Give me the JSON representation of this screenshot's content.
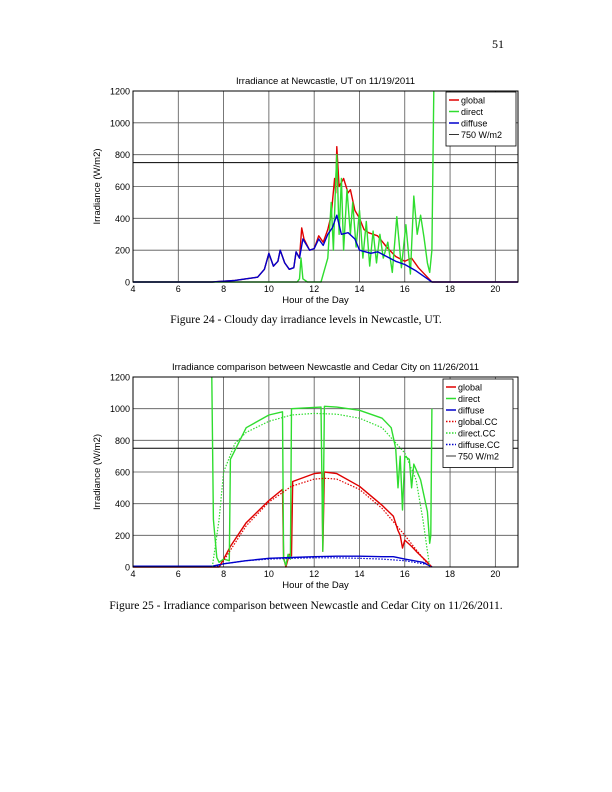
{
  "page_number": "51",
  "captions": [
    "Figure 24 - Cloudy day irradiance levels in Newcastle, UT.",
    "Figure 25 - Irradiance comparison between Newcastle and Cedar City on 11/26/2011."
  ],
  "colors": {
    "global": "#e00000",
    "direct": "#2fdd2f",
    "diffuse": "#0000cc",
    "reference": "#000000"
  },
  "chart_data": [
    {
      "type": "line",
      "title": "Irradiance at Newcastle, UT on 11/19/2011",
      "xlabel": "Hour of the Day",
      "ylabel": "Irradiance (W/m2)",
      "xlim": [
        4,
        21
      ],
      "ylim": [
        0,
        1200
      ],
      "xticks": [
        "4",
        "6",
        "8",
        "10",
        "12",
        "14",
        "16",
        "18",
        "20"
      ],
      "yticks": [
        "0",
        "200",
        "400",
        "600",
        "800",
        "1000",
        "1200"
      ],
      "grid": true,
      "legend_position": "top-right",
      "reference_line": {
        "name": "750 W/m2",
        "y": 750
      },
      "series": [
        {
          "name": "global",
          "color_key": "global",
          "style": "solid",
          "points": [
            [
              4,
              0
            ],
            [
              7.5,
              0
            ],
            [
              8,
              5
            ],
            [
              8.5,
              10
            ],
            [
              9,
              20
            ],
            [
              9.5,
              30
            ],
            [
              9.8,
              80
            ],
            [
              10,
              180
            ],
            [
              10.2,
              100
            ],
            [
              10.4,
              130
            ],
            [
              10.5,
              200
            ],
            [
              10.7,
              120
            ],
            [
              10.9,
              80
            ],
            [
              11.1,
              90
            ],
            [
              11.2,
              190
            ],
            [
              11.35,
              150
            ],
            [
              11.45,
              340
            ],
            [
              11.55,
              270
            ],
            [
              11.8,
              200
            ],
            [
              12,
              210
            ],
            [
              12.2,
              290
            ],
            [
              12.4,
              250
            ],
            [
              12.6,
              330
            ],
            [
              12.75,
              420
            ],
            [
              12.9,
              650
            ],
            [
              12.95,
              560
            ],
            [
              13.0,
              850
            ],
            [
              13.1,
              600
            ],
            [
              13.3,
              650
            ],
            [
              13.5,
              560
            ],
            [
              13.6,
              580
            ],
            [
              13.8,
              450
            ],
            [
              14,
              400
            ],
            [
              14.2,
              330
            ],
            [
              14.4,
              310
            ],
            [
              14.8,
              290
            ],
            [
              15.2,
              220
            ],
            [
              15.6,
              160
            ],
            [
              16,
              130
            ],
            [
              16.3,
              150
            ],
            [
              16.6,
              90
            ],
            [
              17,
              30
            ],
            [
              17.2,
              0
            ],
            [
              21,
              0
            ]
          ]
        },
        {
          "name": "direct",
          "color_key": "direct",
          "style": "solid",
          "points": [
            [
              4,
              0
            ],
            [
              11.25,
              0
            ],
            [
              11.35,
              20
            ],
            [
              11.42,
              150
            ],
            [
              11.5,
              20
            ],
            [
              11.7,
              0
            ],
            [
              12.3,
              0
            ],
            [
              12.6,
              150
            ],
            [
              12.75,
              500
            ],
            [
              12.85,
              200
            ],
            [
              12.95,
              640
            ],
            [
              13.0,
              800
            ],
            [
              13.1,
              300
            ],
            [
              13.2,
              650
            ],
            [
              13.3,
              200
            ],
            [
              13.45,
              580
            ],
            [
              13.6,
              300
            ],
            [
              13.7,
              500
            ],
            [
              13.85,
              220
            ],
            [
              14.0,
              450
            ],
            [
              14.15,
              150
            ],
            [
              14.3,
              380
            ],
            [
              14.45,
              100
            ],
            [
              14.6,
              320
            ],
            [
              14.75,
              120
            ],
            [
              14.9,
              300
            ],
            [
              15.05,
              150
            ],
            [
              15.25,
              250
            ],
            [
              15.45,
              60
            ],
            [
              15.65,
              410
            ],
            [
              15.85,
              90
            ],
            [
              16.05,
              360
            ],
            [
              16.25,
              50
            ],
            [
              16.4,
              540
            ],
            [
              16.55,
              300
            ],
            [
              16.7,
              420
            ],
            [
              16.85,
              280
            ],
            [
              17.0,
              120
            ],
            [
              17.1,
              60
            ],
            [
              17.2,
              200
            ],
            [
              17.28,
              1200
            ]
          ]
        },
        {
          "name": "diffuse",
          "color_key": "diffuse",
          "style": "solid",
          "points": [
            [
              4,
              0
            ],
            [
              7.5,
              0
            ],
            [
              8,
              5
            ],
            [
              8.5,
              10
            ],
            [
              9,
              20
            ],
            [
              9.5,
              30
            ],
            [
              9.8,
              80
            ],
            [
              10,
              180
            ],
            [
              10.2,
              100
            ],
            [
              10.4,
              130
            ],
            [
              10.5,
              200
            ],
            [
              10.7,
              120
            ],
            [
              10.9,
              80
            ],
            [
              11.1,
              90
            ],
            [
              11.2,
              190
            ],
            [
              11.35,
              150
            ],
            [
              11.5,
              270
            ],
            [
              11.8,
              200
            ],
            [
              12,
              210
            ],
            [
              12.2,
              270
            ],
            [
              12.4,
              230
            ],
            [
              12.6,
              300
            ],
            [
              12.8,
              340
            ],
            [
              13.0,
              420
            ],
            [
              13.2,
              300
            ],
            [
              13.5,
              310
            ],
            [
              13.8,
              270
            ],
            [
              14,
              200
            ],
            [
              14.5,
              180
            ],
            [
              14.8,
              190
            ],
            [
              15.2,
              160
            ],
            [
              15.6,
              130
            ],
            [
              16,
              110
            ],
            [
              16.5,
              70
            ],
            [
              17,
              20
            ],
            [
              17.2,
              0
            ],
            [
              21,
              0
            ]
          ]
        }
      ]
    },
    {
      "type": "line",
      "title": "Irradiance comparison between Newcastle and Cedar City on 11/26/2011",
      "xlabel": "Hour of the Day",
      "ylabel": "Irradiance (W/m2)",
      "xlim": [
        4,
        21
      ],
      "ylim": [
        0,
        1200
      ],
      "xticks": [
        "4",
        "6",
        "8",
        "10",
        "12",
        "14",
        "16",
        "18",
        "20"
      ],
      "yticks": [
        "0",
        "200",
        "400",
        "600",
        "800",
        "1000",
        "1200"
      ],
      "grid": true,
      "legend_position": "top-right",
      "reference_line": {
        "name": "750 W/m2",
        "y": 750
      },
      "series": [
        {
          "name": "global",
          "color_key": "global",
          "style": "solid",
          "points": [
            [
              4,
              0
            ],
            [
              7.8,
              0
            ],
            [
              8,
              50
            ],
            [
              8.3,
              130
            ],
            [
              9,
              280
            ],
            [
              10,
              420
            ],
            [
              10.6,
              490
            ],
            [
              10.65,
              60
            ],
            [
              10.75,
              0
            ],
            [
              10.9,
              80
            ],
            [
              11.0,
              70
            ],
            [
              11.05,
              540
            ],
            [
              12,
              590
            ],
            [
              12.35,
              595
            ],
            [
              12.38,
              100
            ],
            [
              12.45,
              600
            ],
            [
              13,
              590
            ],
            [
              14,
              510
            ],
            [
              15,
              390
            ],
            [
              15.5,
              320
            ],
            [
              15.7,
              230
            ],
            [
              15.8,
              200
            ],
            [
              15.9,
              120
            ],
            [
              16,
              170
            ],
            [
              16.3,
              130
            ],
            [
              16.5,
              100
            ],
            [
              17,
              30
            ],
            [
              17.2,
              0
            ]
          ]
        },
        {
          "name": "direct",
          "color_key": "direct",
          "style": "solid",
          "points": [
            [
              7.48,
              1200
            ],
            [
              7.55,
              300
            ],
            [
              7.7,
              60
            ],
            [
              7.8,
              30
            ],
            [
              8.0,
              50
            ],
            [
              8.25,
              40
            ],
            [
              8.3,
              680
            ],
            [
              9,
              880
            ],
            [
              10,
              960
            ],
            [
              10.6,
              980
            ],
            [
              10.65,
              50
            ],
            [
              10.75,
              10
            ],
            [
              10.85,
              80
            ],
            [
              10.95,
              50
            ],
            [
              11.0,
              1000
            ],
            [
              12.3,
              1010
            ],
            [
              12.38,
              100
            ],
            [
              12.45,
              1015
            ],
            [
              13,
              1010
            ],
            [
              14,
              990
            ],
            [
              15,
              940
            ],
            [
              15.4,
              880
            ],
            [
              15.6,
              750
            ],
            [
              15.7,
              500
            ],
            [
              15.8,
              700
            ],
            [
              15.9,
              360
            ],
            [
              16,
              700
            ],
            [
              16.2,
              680
            ],
            [
              16.3,
              500
            ],
            [
              16.4,
              650
            ],
            [
              16.7,
              550
            ],
            [
              17.0,
              350
            ],
            [
              17.1,
              150
            ],
            [
              17.15,
              200
            ],
            [
              17.2,
              1000
            ]
          ]
        },
        {
          "name": "diffuse",
          "color_key": "diffuse",
          "style": "solid",
          "points": [
            [
              4,
              5
            ],
            [
              7.5,
              5
            ],
            [
              8,
              20
            ],
            [
              9,
              40
            ],
            [
              10,
              55
            ],
            [
              11,
              60
            ],
            [
              12,
              65
            ],
            [
              13,
              68
            ],
            [
              14,
              68
            ],
            [
              15,
              65
            ],
            [
              15.5,
              65
            ],
            [
              16,
              50
            ],
            [
              16.8,
              30
            ],
            [
              17.2,
              0
            ]
          ]
        },
        {
          "name": "global.CC",
          "color_key": "global",
          "style": "dotted",
          "points": [
            [
              7.8,
              0
            ],
            [
              8,
              40
            ],
            [
              9,
              260
            ],
            [
              10,
              410
            ],
            [
              11,
              510
            ],
            [
              12,
              555
            ],
            [
              12.5,
              560
            ],
            [
              13,
              555
            ],
            [
              14,
              490
            ],
            [
              15,
              370
            ],
            [
              16,
              200
            ],
            [
              16.5,
              110
            ],
            [
              17,
              20
            ],
            [
              17.2,
              0
            ]
          ]
        },
        {
          "name": "direct.CC",
          "color_key": "direct",
          "style": "dotted",
          "points": [
            [
              7.5,
              0
            ],
            [
              7.8,
              300
            ],
            [
              8,
              600
            ],
            [
              8.5,
              780
            ],
            [
              9,
              850
            ],
            [
              10,
              920
            ],
            [
              11,
              960
            ],
            [
              12,
              970
            ],
            [
              13,
              965
            ],
            [
              14,
              940
            ],
            [
              15,
              880
            ],
            [
              16,
              720
            ],
            [
              16.5,
              550
            ],
            [
              16.8,
              300
            ],
            [
              17,
              100
            ],
            [
              17.1,
              0
            ]
          ]
        },
        {
          "name": "diffuse.CC",
          "color_key": "diffuse",
          "style": "dotted",
          "points": [
            [
              4,
              3
            ],
            [
              7.7,
              5
            ],
            [
              8,
              20
            ],
            [
              9,
              40
            ],
            [
              10,
              50
            ],
            [
              11,
              55
            ],
            [
              12,
              58
            ],
            [
              13,
              58
            ],
            [
              14,
              55
            ],
            [
              15,
              50
            ],
            [
              16,
              40
            ],
            [
              17,
              15
            ],
            [
              17.2,
              0
            ]
          ]
        }
      ]
    }
  ]
}
